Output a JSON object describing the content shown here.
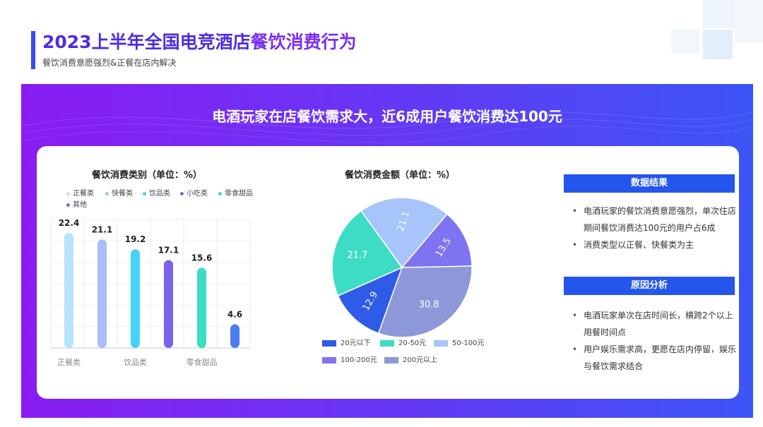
{
  "header": {
    "title_part1": "2023上半年全国电竞酒店",
    "title_part2": "餐饮消费行为",
    "subtitle": "餐饮消费意愿强烈&正餐在店内解决"
  },
  "banner": "电酒玩家在店餐饮需求大，近6成用户餐饮消费达100元",
  "chart_data": [
    {
      "type": "bar",
      "title": "餐饮消费类别（单位：%）",
      "categories": [
        "正餐类",
        "快餐类",
        "饮品类",
        "小吃类",
        "零食甜品",
        "其他"
      ],
      "values": [
        22.4,
        21.1,
        19.2,
        17.1,
        15.6,
        4.6
      ],
      "x_tick_labels": [
        "正餐类",
        "饮品类",
        "零食甜品"
      ],
      "colors": [
        "#b5e6fb",
        "#a9bdf8",
        "#46d3f8",
        "#7b63ee",
        "#3bdcc4",
        "#4a7df0"
      ],
      "grid": true,
      "legend": "top"
    },
    {
      "type": "pie",
      "title": "餐饮消费金额（单位：%）",
      "labels": [
        "20元以下",
        "20-50元",
        "50-100元",
        "100-200元",
        "200元以上"
      ],
      "values": [
        12.9,
        21.7,
        21.1,
        13.5,
        30.8
      ],
      "colors": [
        "#2f5be8",
        "#3ddcc4",
        "#a7c4fb",
        "#7e73f0",
        "#8d98d9"
      ],
      "legend": "bottom"
    }
  ],
  "info": {
    "results_header": "数据结果",
    "results": [
      "电酒玩家的餐饮消费意愿强烈，单次住店期间餐饮消费达100元的用户占6成",
      "消费类型以正餐、快餐类为主"
    ],
    "reasons_header": "原因分析",
    "reasons": [
      "电酒玩家单次在店时间长，横跨2个以上用餐时间点",
      "用户娱乐需求高，更愿在店内停留，娱乐与餐饮需求结合"
    ]
  }
}
